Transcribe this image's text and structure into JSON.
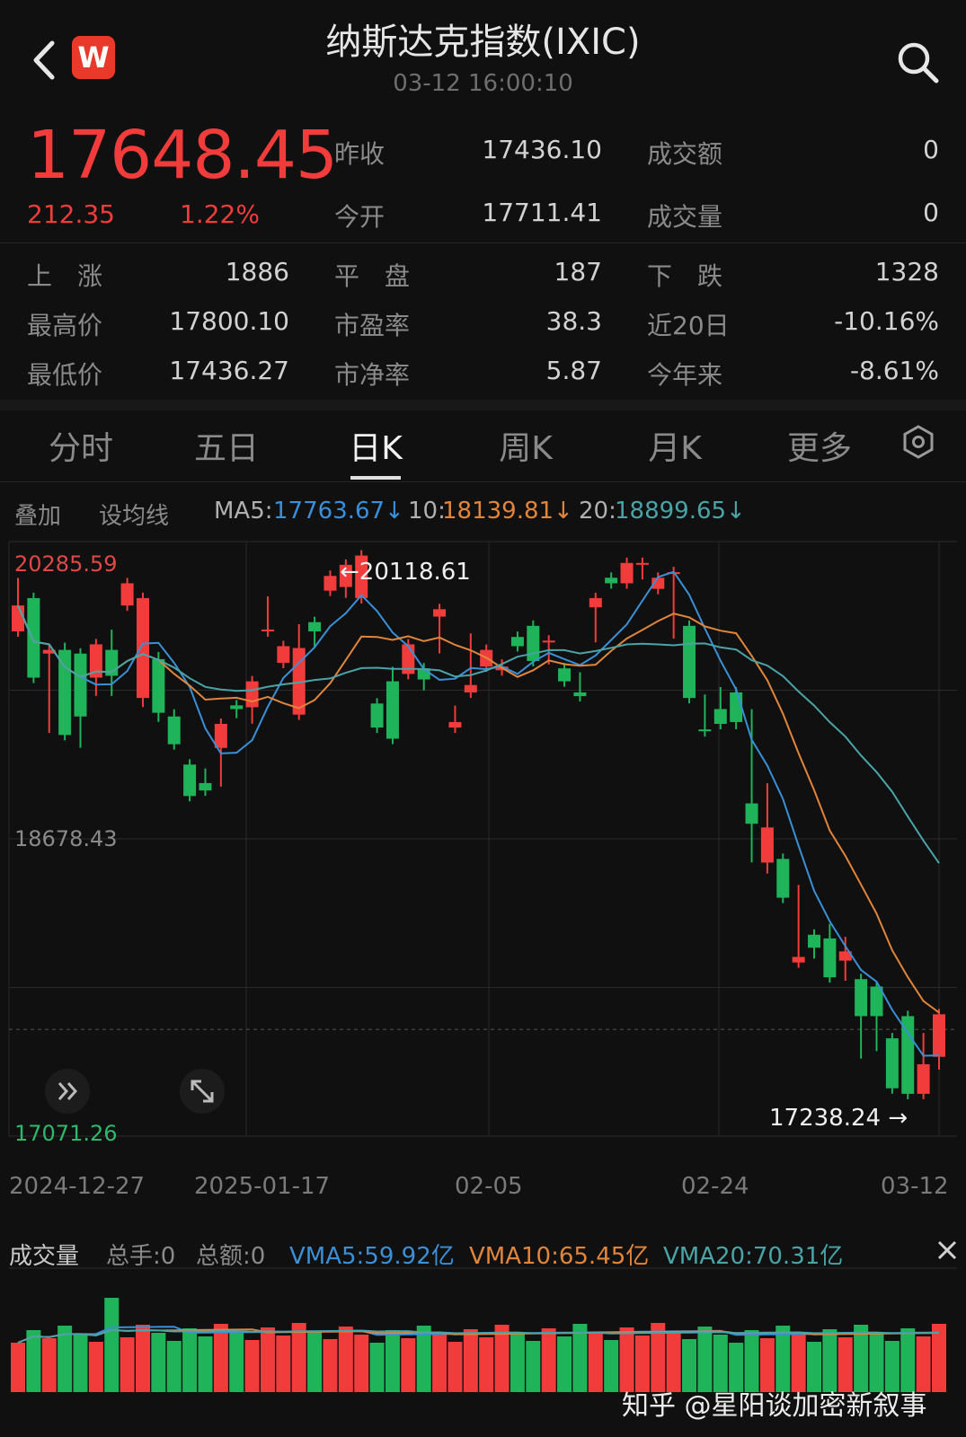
{
  "header": {
    "title": "纳斯达克指数(IXIC)",
    "timestamp": "03-12 16:00:10",
    "brand_letter": "W"
  },
  "quote": {
    "price": "17648.45",
    "change": "212.35",
    "change_pct": "1.22%",
    "up_color": "#f23c3c",
    "down_color": "#1fb35a"
  },
  "stats": {
    "prev_close_label": "昨收",
    "prev_close": "17436.10",
    "turnover_label": "成交额",
    "turnover": "0",
    "open_label": "今开",
    "open": "17711.41",
    "volume_label": "成交量",
    "volume": "0",
    "advancers_label": "上　涨",
    "advancers": "1886",
    "unchanged_label": "平　盘",
    "unchanged": "187",
    "decliners_label": "下　跌",
    "decliners": "1328",
    "high_label": "最高价",
    "high": "17800.10",
    "pe_label": "市盈率",
    "pe": "38.3",
    "chg20_label": "近20日",
    "chg20": "-10.16%",
    "low_label": "最低价",
    "low": "17436.27",
    "pb_label": "市净率",
    "pb": "5.87",
    "ytd_label": "今年来",
    "ytd": "-8.61%"
  },
  "tabs": [
    {
      "label": "分时"
    },
    {
      "label": "五日"
    },
    {
      "label": "日K"
    },
    {
      "label": "周K"
    },
    {
      "label": "月K"
    },
    {
      "label": "更多"
    }
  ],
  "indicators": {
    "overlay": "叠加",
    "set_ma": "设均线",
    "ma5_label": "MA5:",
    "ma5_value": "17763.67↓",
    "ma10_label": "10:",
    "ma10_value": "18139.81↓",
    "ma20_label": "20:",
    "ma20_value": "18899.65↓",
    "ma5_color": "#3a8fd6",
    "ma10_color": "#e0853a",
    "ma20_color": "#4aa3a6"
  },
  "chart_data": {
    "type": "candlestick",
    "axis_top": "20285.59",
    "axis_mid": "18678.43",
    "axis_bottom": "17071.26",
    "high_marker": "←20118.61",
    "low_marker": "17238.24 →",
    "ylim": [
      17071.26,
      20285.59
    ],
    "x_labels": [
      "2024-12-27",
      "2025-01-17",
      "02-05",
      "02-24",
      "03-12"
    ],
    "candles": [
      [
        19800,
        20060,
        19810,
        19940
      ],
      [
        19980,
        19930,
        19725,
        19550
      ],
      [
        19680,
        19440,
        19280,
        19700
      ],
      [
        19700,
        19710,
        19380,
        19240
      ],
      [
        19680,
        19580,
        19200,
        19340
      ],
      [
        19550,
        19700,
        19480,
        19730
      ],
      [
        19700,
        19780,
        19480,
        19560
      ],
      [
        19940,
        19960,
        19960,
        20060
      ],
      [
        19440,
        19940,
        19420,
        19980
      ],
      [
        19650,
        19660,
        19340,
        19360
      ],
      [
        19340,
        19350,
        19280,
        19190
      ],
      [
        19080,
        18980,
        19010,
        18910
      ],
      [
        18980,
        19030,
        18950,
        18940
      ],
      [
        19170,
        18990,
        19150,
        19300
      ],
      [
        19400,
        19400,
        19360,
        19380
      ],
      [
        19390,
        19330,
        19520,
        19530
      ],
      [
        19800,
        19800,
        19960,
        19810
      ],
      [
        19630,
        19670,
        19710,
        19720
      ],
      [
        19350,
        19810,
        19760,
        19710
      ],
      [
        19850,
        19740,
        19750,
        19800
      ],
      [
        20020,
        20050,
        20060,
        20100
      ],
      [
        20040,
        20080,
        20010,
        20160
      ],
      [
        19980,
        20020,
        20130,
        20210
      ],
      [
        19410,
        19290,
        19330,
        19280
      ],
      [
        19530,
        19580,
        19220,
        19220
      ],
      [
        19570,
        19730,
        19700,
        19730
      ],
      [
        19600,
        19530,
        19510,
        19540
      ],
      [
        19880,
        19920,
        19710,
        19920
      ],
      [
        19280,
        19370,
        19310,
        19310
      ],
      [
        19470,
        19520,
        19760,
        19510
      ],
      [
        19610,
        19690,
        19660,
        19700
      ],
      [
        19590,
        19620,
        19590,
        19610
      ],
      [
        19770,
        19760,
        19720,
        19720
      ],
      [
        19830,
        19800,
        19640,
        19640
      ],
      [
        19750,
        19650,
        19730,
        19750
      ],
      [
        19600,
        19570,
        19560,
        19530
      ],
      [
        19470,
        19550,
        19500,
        19450
      ],
      [
        19930,
        19920,
        19770,
        19980
      ],
      [
        20090,
        20060,
        20090,
        20060
      ],
      [
        20060,
        20150,
        20140,
        20170
      ],
      [
        20170,
        20140,
        20110,
        20170
      ],
      [
        20030,
        20060,
        20090,
        20090
      ],
      [
        20110,
        20100,
        19790,
        20120
      ],
      [
        19830,
        19770,
        19730,
        19440
      ],
      [
        19270,
        19430,
        19390,
        19260
      ],
      [
        19380,
        19470,
        19380,
        19300
      ],
      [
        19470,
        19310,
        19300,
        19310
      ],
      [
        18870,
        19350,
        18580,
        18760
      ],
      [
        18550,
        18950,
        18520,
        18740
      ],
      [
        18570,
        18560,
        18440,
        18360
      ],
      [
        18010,
        18400,
        18290,
        18040
      ],
      [
        18160,
        18060,
        18090,
        18090
      ],
      [
        18140,
        18190,
        17960,
        17930
      ],
      [
        18020,
        17940,
        18120,
        18070
      ],
      [
        17920,
        17880,
        17520,
        17720
      ],
      [
        17880,
        17620,
        17560,
        17720
      ],
      [
        17600,
        17530,
        17500,
        17330
      ],
      [
        17720,
        17640,
        17300,
        17300
      ],
      [
        17300,
        17580,
        17600,
        17460
      ],
      [
        17500,
        17650,
        17460,
        17730
      ]
    ]
  },
  "volume": {
    "title": "成交量",
    "total_hand": "总手:0",
    "total_amount": "总额:0",
    "vma5": "VMA5:59.92亿",
    "vma10": "VMA10:65.45亿",
    "vma20": "VMA20:70.31亿"
  },
  "watermark": "知乎 @星阳谈加密新叙事"
}
